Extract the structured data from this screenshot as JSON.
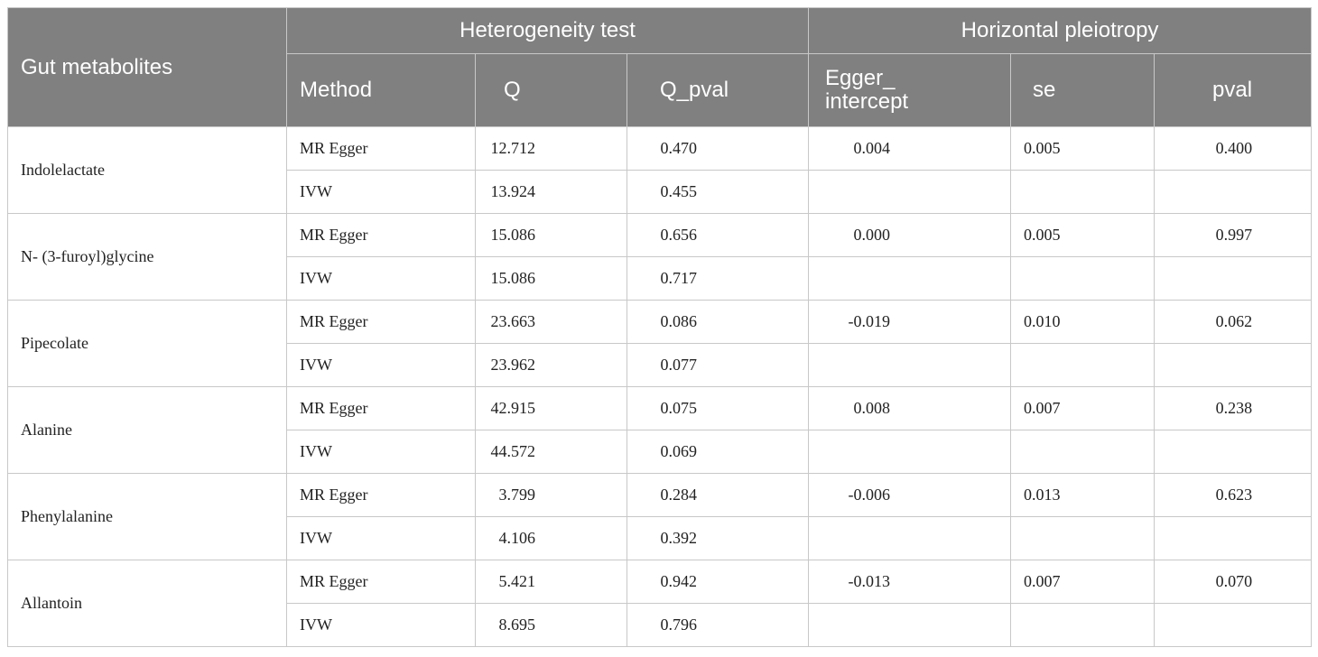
{
  "table": {
    "header": {
      "group_label": "Gut metabolites",
      "groups": [
        "Heterogeneity test",
        "Horizontal pleiotropy"
      ],
      "columns": [
        "Method",
        "Q",
        "Q_pval",
        "Egger_ intercept",
        "se",
        "pval"
      ]
    },
    "rows": [
      {
        "metabolite": "Indolelactate",
        "methods": [
          {
            "method": "MR Egger",
            "Q": "12.712",
            "Q_pval": "0.470"
          },
          {
            "method": "IVW",
            "Q": "13.924",
            "Q_pval": "0.455"
          }
        ],
        "egger_intercept": "0.004",
        "se": "0.005",
        "pval": "0.400"
      },
      {
        "metabolite": "N- (3-furoyl)glycine",
        "methods": [
          {
            "method": "MR Egger",
            "Q": "15.086",
            "Q_pval": "0.656"
          },
          {
            "method": "IVW",
            "Q": "15.086",
            "Q_pval": "0.717"
          }
        ],
        "egger_intercept": "0.000",
        "se": "0.005",
        "pval": "0.997"
      },
      {
        "metabolite": "Pipecolate",
        "methods": [
          {
            "method": "MR Egger",
            "Q": "23.663",
            "Q_pval": "0.086"
          },
          {
            "method": "IVW",
            "Q": "23.962",
            "Q_pval": "0.077"
          }
        ],
        "egger_intercept": "-0.019",
        "se": "0.010",
        "pval": "0.062"
      },
      {
        "metabolite": "Alanine",
        "methods": [
          {
            "method": "MR Egger",
            "Q": "42.915",
            "Q_pval": "0.075"
          },
          {
            "method": "IVW",
            "Q": "44.572",
            "Q_pval": "0.069"
          }
        ],
        "egger_intercept": "0.008",
        "se": "0.007",
        "pval": "0.238"
      },
      {
        "metabolite": "Phenylalanine",
        "methods": [
          {
            "method": "MR Egger",
            "Q": "3.799",
            "Q_pval": "0.284"
          },
          {
            "method": "IVW",
            "Q": "4.106",
            "Q_pval": "0.392"
          }
        ],
        "egger_intercept": "-0.006",
        "se": "0.013",
        "pval": "0.623"
      },
      {
        "metabolite": "Allantoin",
        "methods": [
          {
            "method": "MR Egger",
            "Q": "5.421",
            "Q_pval": "0.942"
          },
          {
            "method": "IVW",
            "Q": "8.695",
            "Q_pval": "0.796"
          }
        ],
        "egger_intercept": "-0.013",
        "se": "0.007",
        "pval": "0.070"
      }
    ]
  }
}
